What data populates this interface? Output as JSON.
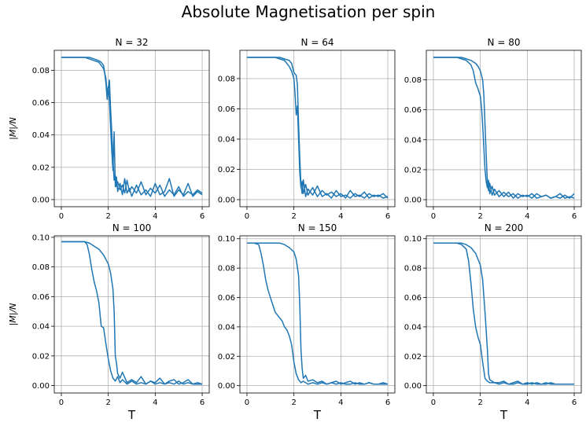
{
  "figure_title": "Absolute Magnetisation per spin",
  "colors": {
    "line": "#1f77b4",
    "grid": "#b0b0b0",
    "axes": "#000000"
  },
  "chart_data": [
    {
      "type": "line",
      "title": "N = 32",
      "xlabel": "",
      "ylabel": "|M|/N",
      "xlim": [
        -0.3,
        6.3
      ],
      "ylim": [
        -0.0044,
        0.0924
      ],
      "xticks": [
        "0",
        "2",
        "4",
        "6"
      ],
      "yticks": [
        "0.00",
        "0.02",
        "0.04",
        "0.06",
        "0.08"
      ],
      "grid": true,
      "series": [
        {
          "x": [
            0,
            0.5,
            1,
            1.2,
            1.4,
            1.6,
            1.7,
            1.8,
            1.85,
            1.9,
            1.95,
            2.0,
            2.05,
            2.1,
            2.15,
            2.2,
            2.25,
            2.3,
            2.35,
            2.4,
            2.5,
            2.6,
            2.7,
            2.8,
            2.9,
            3.0,
            3.2,
            3.4,
            3.6,
            3.8,
            4.0,
            4.2,
            4.4,
            4.6,
            4.8,
            5.0,
            5.2,
            5.4,
            5.6,
            5.8,
            6.0
          ],
          "y": [
            0.088,
            0.088,
            0.088,
            0.088,
            0.087,
            0.086,
            0.085,
            0.083,
            0.078,
            0.072,
            0.062,
            0.068,
            0.074,
            0.056,
            0.042,
            0.025,
            0.012,
            0.015,
            0.008,
            0.011,
            0.006,
            0.009,
            0.004,
            0.012,
            0.005,
            0.008,
            0.004,
            0.011,
            0.003,
            0.007,
            0.004,
            0.009,
            0.002,
            0.006,
            0.003,
            0.008,
            0.002,
            0.005,
            0.003,
            0.006,
            0.004
          ]
        },
        {
          "x": [
            0,
            0.5,
            1,
            1.2,
            1.4,
            1.6,
            1.8,
            1.9,
            1.95,
            2.0,
            2.05,
            2.1,
            2.15,
            2.2,
            2.25,
            2.3,
            2.35,
            2.4,
            2.5,
            2.6,
            2.7,
            2.8,
            2.9,
            3.0,
            3.2,
            3.4,
            3.6,
            3.8,
            4.0,
            4.2,
            4.4,
            4.6,
            4.8,
            5.0,
            5.2,
            5.4,
            5.6,
            5.8,
            6.0
          ],
          "y": [
            0.088,
            0.088,
            0.088,
            0.087,
            0.086,
            0.085,
            0.081,
            0.075,
            0.065,
            0.07,
            0.061,
            0.045,
            0.03,
            0.018,
            0.042,
            0.008,
            0.014,
            0.005,
            0.01,
            0.003,
            0.013,
            0.004,
            0.007,
            0.002,
            0.009,
            0.003,
            0.006,
            0.002,
            0.01,
            0.003,
            0.005,
            0.013,
            0.002,
            0.006,
            0.003,
            0.01,
            0.002,
            0.005,
            0.003
          ]
        }
      ]
    },
    {
      "type": "line",
      "title": "N = 64",
      "xlabel": "",
      "ylabel": "",
      "xlim": [
        -0.3,
        6.3
      ],
      "ylim": [
        -0.0047,
        0.0987
      ],
      "xticks": [
        "0",
        "2",
        "4",
        "6"
      ],
      "yticks": [
        "0.00",
        "0.02",
        "0.04",
        "0.06",
        "0.08"
      ],
      "grid": true,
      "series": [
        {
          "x": [
            0,
            0.5,
            1,
            1.2,
            1.4,
            1.6,
            1.8,
            1.9,
            2.0,
            2.05,
            2.1,
            2.15,
            2.2,
            2.25,
            2.3,
            2.35,
            2.4,
            2.5,
            2.6,
            2.8,
            3.0,
            3.2,
            3.4,
            3.6,
            3.8,
            4.0,
            4.2,
            4.4,
            4.6,
            4.8,
            5.0,
            5.2,
            5.4,
            5.6,
            5.8,
            6.0
          ],
          "y": [
            0.094,
            0.094,
            0.094,
            0.094,
            0.093,
            0.092,
            0.088,
            0.085,
            0.08,
            0.07,
            0.056,
            0.062,
            0.04,
            0.018,
            0.008,
            0.012,
            0.004,
            0.01,
            0.003,
            0.008,
            0.002,
            0.006,
            0.003,
            0.005,
            0.002,
            0.004,
            0.001,
            0.006,
            0.002,
            0.003,
            0.001,
            0.004,
            0.002,
            0.003,
            0.001,
            0.002
          ]
        },
        {
          "x": [
            0,
            0.5,
            1,
            1.2,
            1.4,
            1.6,
            1.8,
            1.9,
            2.0,
            2.1,
            2.15,
            2.2,
            2.25,
            2.3,
            2.35,
            2.4,
            2.5,
            2.6,
            2.8,
            3.0,
            3.2,
            3.4,
            3.6,
            3.8,
            4.0,
            4.2,
            4.4,
            4.6,
            4.8,
            5.0,
            5.2,
            5.4,
            5.6,
            5.8,
            6.0
          ],
          "y": [
            0.094,
            0.094,
            0.094,
            0.094,
            0.094,
            0.093,
            0.092,
            0.09,
            0.084,
            0.082,
            0.076,
            0.05,
            0.028,
            0.01,
            0.004,
            0.013,
            0.002,
            0.007,
            0.003,
            0.009,
            0.002,
            0.004,
            0.001,
            0.006,
            0.002,
            0.003,
            0.001,
            0.004,
            0.002,
            0.005,
            0.001,
            0.003,
            0.002,
            0.004,
            0.001
          ]
        }
      ]
    },
    {
      "type": "line",
      "title": "N = 80",
      "xlabel": "",
      "ylabel": "",
      "xlim": [
        -0.3,
        6.3
      ],
      "ylim": [
        -0.0047,
        0.0997
      ],
      "xticks": [
        "0",
        "2",
        "4",
        "6"
      ],
      "yticks": [
        "0.00",
        "0.02",
        "0.04",
        "0.06",
        "0.08"
      ],
      "grid": true,
      "series": [
        {
          "x": [
            0,
            0.5,
            1,
            1.2,
            1.4,
            1.6,
            1.7,
            1.8,
            1.9,
            2.0,
            2.05,
            2.1,
            2.15,
            2.2,
            2.25,
            2.3,
            2.35,
            2.4,
            2.5,
            2.6,
            2.8,
            3.0,
            3.2,
            3.4,
            3.6,
            3.8,
            4.0,
            4.2,
            4.4,
            4.6,
            4.8,
            5.0,
            5.2,
            5.4,
            5.6,
            5.8,
            6.0
          ],
          "y": [
            0.095,
            0.095,
            0.095,
            0.094,
            0.093,
            0.09,
            0.086,
            0.078,
            0.074,
            0.069,
            0.062,
            0.05,
            0.035,
            0.02,
            0.012,
            0.008,
            0.013,
            0.004,
            0.009,
            0.003,
            0.006,
            0.002,
            0.005,
            0.001,
            0.004,
            0.002,
            0.003,
            0.001,
            0.004,
            0.002,
            0.003,
            0.001,
            0.002,
            0.004,
            0.001,
            0.002,
            0.001
          ]
        },
        {
          "x": [
            0,
            0.5,
            1,
            1.2,
            1.4,
            1.6,
            1.8,
            1.9,
            2.0,
            2.1,
            2.15,
            2.2,
            2.25,
            2.3,
            2.35,
            2.4,
            2.5,
            2.6,
            2.8,
            3.0,
            3.2,
            3.4,
            3.6,
            3.8,
            4.0,
            4.2,
            4.4,
            4.6,
            4.8,
            5.0,
            5.2,
            5.4,
            5.6,
            5.8,
            6.0
          ],
          "y": [
            0.095,
            0.095,
            0.095,
            0.095,
            0.094,
            0.093,
            0.091,
            0.089,
            0.086,
            0.08,
            0.07,
            0.05,
            0.03,
            0.012,
            0.006,
            0.011,
            0.003,
            0.007,
            0.002,
            0.005,
            0.002,
            0.004,
            0.001,
            0.003,
            0.002,
            0.004,
            0.001,
            0.002,
            0.003,
            0.001,
            0.002,
            0.001,
            0.003,
            0.001,
            0.004
          ]
        }
      ]
    },
    {
      "type": "line",
      "title": "N = 100",
      "xlabel": "T",
      "ylabel": "|M|/N",
      "xlim": [
        -0.3,
        6.3
      ],
      "ylim": [
        -0.005,
        0.101
      ],
      "xticks": [
        "0",
        "2",
        "4",
        "6"
      ],
      "yticks": [
        "0.00",
        "0.02",
        "0.04",
        "0.06",
        "0.08",
        "0.10"
      ],
      "grid": true,
      "series": [
        {
          "x": [
            0,
            0.5,
            1.0,
            1.1,
            1.2,
            1.3,
            1.4,
            1.5,
            1.6,
            1.7,
            1.8,
            1.9,
            2.0,
            2.1,
            2.2,
            2.3,
            2.4,
            2.5,
            2.6,
            2.8,
            3.0,
            3.2,
            3.4,
            3.6,
            3.8,
            4.0,
            4.2,
            4.4,
            4.6,
            4.8,
            5.0,
            5.2,
            5.4,
            5.6,
            5.8,
            6.0
          ],
          "y": [
            0.097,
            0.097,
            0.097,
            0.095,
            0.088,
            0.078,
            0.07,
            0.064,
            0.056,
            0.04,
            0.039,
            0.028,
            0.018,
            0.01,
            0.005,
            0.003,
            0.006,
            0.002,
            0.004,
            0.001,
            0.003,
            0.001,
            0.002,
            0.001,
            0.003,
            0.001,
            0.002,
            0.001,
            0.002,
            0.001,
            0.003,
            0.001,
            0.002,
            0.001,
            0.001,
            0.001
          ]
        },
        {
          "x": [
            0,
            0.5,
            1.0,
            1.2,
            1.4,
            1.6,
            1.8,
            1.9,
            2.0,
            2.1,
            2.2,
            2.25,
            2.3,
            2.35,
            2.4,
            2.5,
            2.6,
            2.8,
            3.0,
            3.2,
            3.4,
            3.6,
            3.8,
            4.0,
            4.2,
            4.4,
            4.6,
            4.8,
            5.0,
            5.2,
            5.4,
            5.6,
            5.8,
            6.0
          ],
          "y": [
            0.097,
            0.097,
            0.097,
            0.096,
            0.094,
            0.092,
            0.088,
            0.085,
            0.082,
            0.076,
            0.065,
            0.05,
            0.02,
            0.015,
            0.008,
            0.005,
            0.009,
            0.002,
            0.004,
            0.002,
            0.006,
            0.001,
            0.003,
            0.002,
            0.005,
            0.001,
            0.003,
            0.004,
            0.001,
            0.002,
            0.004,
            0.001,
            0.002,
            0.001
          ]
        }
      ]
    },
    {
      "type": "line",
      "title": "N = 150",
      "xlabel": "T",
      "ylabel": "",
      "xlim": [
        -0.3,
        6.3
      ],
      "ylim": [
        -0.005,
        0.102
      ],
      "xticks": [
        "0",
        "2",
        "4",
        "6"
      ],
      "yticks": [
        "0.00",
        "0.02",
        "0.04",
        "0.06",
        "0.08",
        "0.10"
      ],
      "grid": true,
      "series": [
        {
          "x": [
            0,
            0.3,
            0.5,
            0.6,
            0.7,
            0.8,
            0.9,
            1.0,
            1.1,
            1.2,
            1.3,
            1.4,
            1.5,
            1.6,
            1.7,
            1.8,
            1.9,
            2.0,
            2.1,
            2.2,
            2.3,
            2.4,
            2.6,
            2.8,
            3.0,
            3.2,
            3.4,
            3.6,
            3.8,
            4.0,
            4.2,
            4.4,
            4.6,
            4.8,
            5.0,
            5.2,
            5.4,
            5.6,
            5.8,
            6.0
          ],
          "y": [
            0.097,
            0.097,
            0.096,
            0.09,
            0.082,
            0.072,
            0.065,
            0.06,
            0.055,
            0.05,
            0.048,
            0.046,
            0.044,
            0.04,
            0.038,
            0.034,
            0.028,
            0.016,
            0.008,
            0.004,
            0.002,
            0.003,
            0.001,
            0.002,
            0.001,
            0.002,
            0.001,
            0.002,
            0.001,
            0.002,
            0.001,
            0.001,
            0.002,
            0.001,
            0.001,
            0.002,
            0.001,
            0.001,
            0.001,
            0.001
          ]
        },
        {
          "x": [
            0,
            0.5,
            1.0,
            1.2,
            1.4,
            1.6,
            1.8,
            2.0,
            2.1,
            2.2,
            2.25,
            2.3,
            2.35,
            2.4,
            2.5,
            2.6,
            2.8,
            3.0,
            3.2,
            3.4,
            3.6,
            3.8,
            4.0,
            4.2,
            4.4,
            4.6,
            4.8,
            5.0,
            5.2,
            5.4,
            5.6,
            5.8,
            6.0
          ],
          "y": [
            0.097,
            0.097,
            0.097,
            0.097,
            0.097,
            0.096,
            0.094,
            0.091,
            0.086,
            0.075,
            0.055,
            0.025,
            0.012,
            0.005,
            0.007,
            0.003,
            0.004,
            0.002,
            0.003,
            0.001,
            0.002,
            0.003,
            0.001,
            0.002,
            0.003,
            0.001,
            0.002,
            0.001,
            0.002,
            0.001,
            0.001,
            0.002,
            0.001
          ]
        }
      ]
    },
    {
      "type": "line",
      "title": "N = 200",
      "xlabel": "T",
      "ylabel": "",
      "xlim": [
        -0.3,
        6.3
      ],
      "ylim": [
        -0.005,
        0.102
      ],
      "xticks": [
        "0",
        "2",
        "4",
        "6"
      ],
      "yticks": [
        "0.00",
        "0.02",
        "0.04",
        "0.06",
        "0.08",
        "0.10"
      ],
      "grid": true,
      "series": [
        {
          "x": [
            0,
            0.5,
            1.0,
            1.2,
            1.4,
            1.5,
            1.6,
            1.7,
            1.8,
            1.9,
            2.0,
            2.1,
            2.2,
            2.3,
            2.4,
            2.6,
            2.8,
            3.0,
            3.2,
            3.4,
            3.6,
            3.8,
            4.0,
            4.2,
            4.4,
            4.6,
            4.8,
            5.0,
            5.2,
            5.4,
            5.6,
            5.8,
            6.0
          ],
          "y": [
            0.097,
            0.097,
            0.097,
            0.096,
            0.093,
            0.085,
            0.07,
            0.052,
            0.04,
            0.033,
            0.028,
            0.016,
            0.005,
            0.003,
            0.002,
            0.002,
            0.001,
            0.002,
            0.001,
            0.001,
            0.002,
            0.001,
            0.001,
            0.002,
            0.001,
            0.001,
            0.002,
            0.001,
            0.001,
            0.001,
            0.001,
            0.001,
            0.001
          ]
        },
        {
          "x": [
            0,
            0.5,
            1.0,
            1.2,
            1.4,
            1.6,
            1.8,
            2.0,
            2.1,
            2.2,
            2.3,
            2.35,
            2.4,
            2.5,
            2.6,
            2.8,
            3.0,
            3.2,
            3.4,
            3.6,
            3.8,
            4.0,
            4.2,
            4.4,
            4.6,
            4.8,
            5.0,
            5.2,
            5.4,
            5.6,
            5.8,
            6.0
          ],
          "y": [
            0.097,
            0.097,
            0.097,
            0.097,
            0.096,
            0.094,
            0.09,
            0.082,
            0.072,
            0.05,
            0.025,
            0.008,
            0.004,
            0.003,
            0.002,
            0.002,
            0.003,
            0.001,
            0.002,
            0.003,
            0.001,
            0.002,
            0.001,
            0.002,
            0.001,
            0.001,
            0.002,
            0.001,
            0.001,
            0.001,
            0.001,
            0.001
          ]
        }
      ]
    }
  ]
}
